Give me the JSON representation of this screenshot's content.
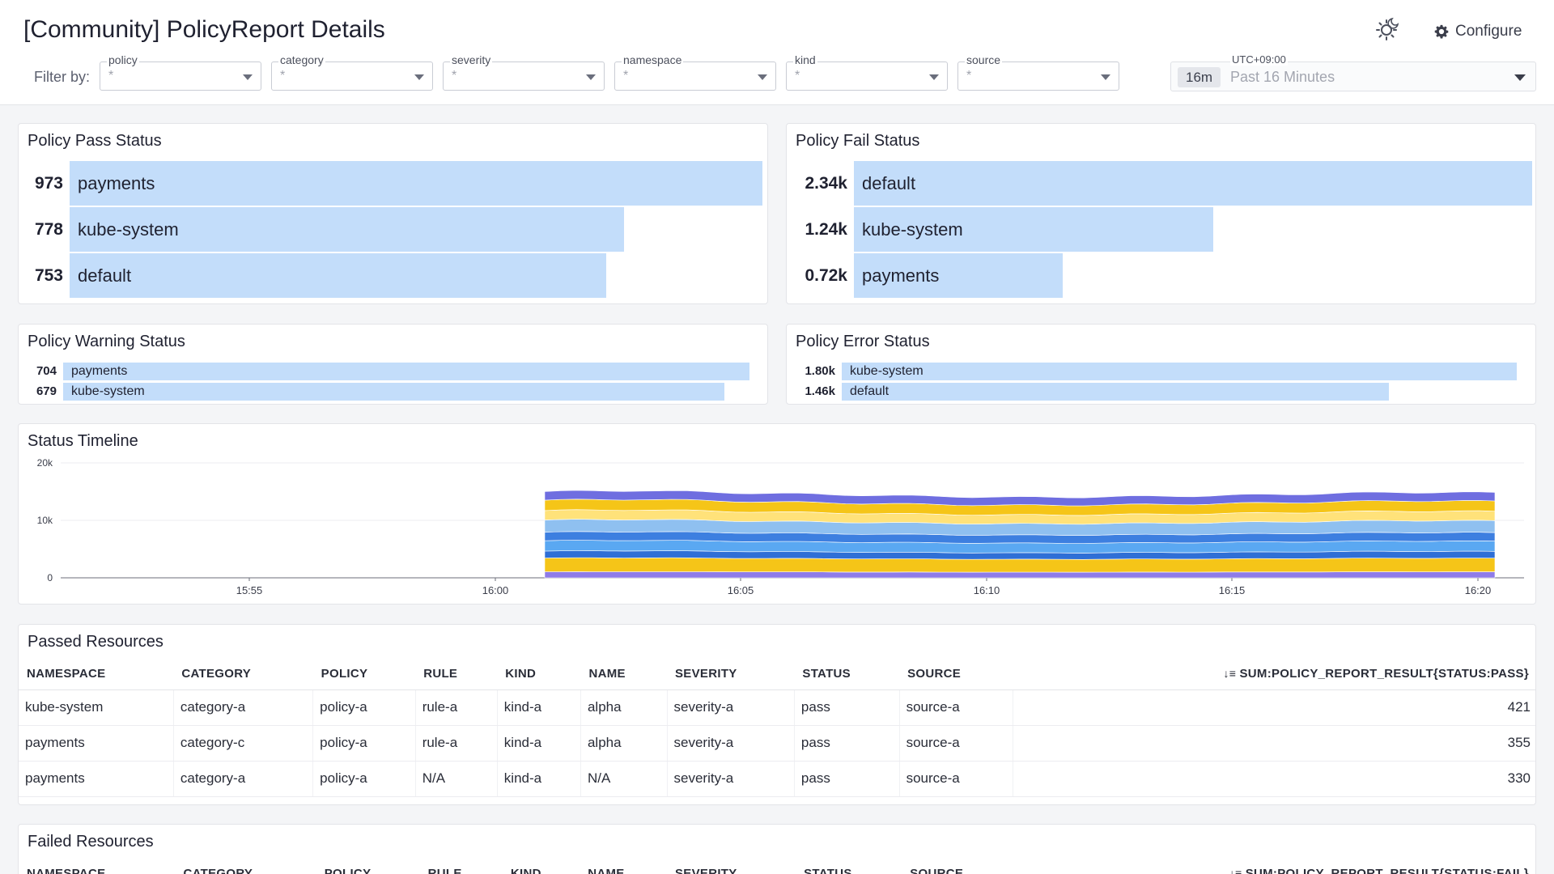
{
  "header": {
    "title": "[Community] PolicyReport Details",
    "configure_label": "Configure",
    "filter_by_label": "Filter by:",
    "filters": [
      {
        "name": "policy",
        "value": "*"
      },
      {
        "name": "category",
        "value": "*"
      },
      {
        "name": "severity",
        "value": "*"
      },
      {
        "name": "namespace",
        "value": "*"
      },
      {
        "name": "kind",
        "value": "*"
      },
      {
        "name": "source",
        "value": "*"
      }
    ],
    "time": {
      "timezone": "UTC+09:00",
      "badge": "16m",
      "range": "Past 16 Minutes"
    }
  },
  "pass_status": {
    "title": "Policy Pass Status",
    "rows": [
      {
        "value": "973",
        "label": "payments",
        "fraction": 1.0
      },
      {
        "value": "778",
        "label": "kube-system",
        "fraction": 0.8
      },
      {
        "value": "753",
        "label": "default",
        "fraction": 0.774
      }
    ]
  },
  "fail_status": {
    "title": "Policy Fail Status",
    "rows": [
      {
        "value": "2.34k",
        "label": "default",
        "fraction": 1.0
      },
      {
        "value": "1.24k",
        "label": "kube-system",
        "fraction": 0.53
      },
      {
        "value": "0.72k",
        "label": "payments",
        "fraction": 0.308
      }
    ]
  },
  "warning_status": {
    "title": "Policy Warning Status",
    "rows": [
      {
        "value": "704",
        "label": "payments",
        "fraction": 1.0
      },
      {
        "value": "679",
        "label": "kube-system",
        "fraction": 0.964
      }
    ]
  },
  "error_status": {
    "title": "Policy Error Status",
    "rows": [
      {
        "value": "1.80k",
        "label": "kube-system",
        "fraction": 1.0
      },
      {
        "value": "1.46k",
        "label": "default",
        "fraction": 0.811
      }
    ]
  },
  "timeline": {
    "title": "Status Timeline",
    "chart_data": {
      "type": "area",
      "title": "Status Timeline",
      "y_ticks": [
        "20k",
        "10k",
        "0"
      ],
      "ylim": [
        0,
        20000
      ],
      "x_ticks": [
        "15:55",
        "16:00",
        "16:05",
        "16:10",
        "16:15",
        "16:20"
      ],
      "series_colors": [
        "#6f6ee0",
        "#f5c518",
        "#ffe27a",
        "#8fc0f0",
        "#3d7fe0",
        "#5aa8f2",
        "#2f6fd6",
        "#f5c518",
        "#8e7ce8"
      ],
      "total_estimate": [
        15000,
        15200,
        14800,
        14500,
        14200,
        14000,
        14100,
        14300,
        14600,
        14900,
        14800
      ]
    }
  },
  "passed_resources": {
    "title": "Passed Resources",
    "columns": [
      "NAMESPACE",
      "CATEGORY",
      "POLICY",
      "RULE",
      "KIND",
      "NAME",
      "SEVERITY",
      "STATUS",
      "SOURCE",
      "SUM:POLICY_REPORT_RESULT{STATUS:PASS}"
    ],
    "rows": [
      [
        "kube-system",
        "category-a",
        "policy-a",
        "rule-a",
        "kind-a",
        "alpha",
        "severity-a",
        "pass",
        "source-a",
        "421"
      ],
      [
        "payments",
        "category-c",
        "policy-a",
        "rule-a",
        "kind-a",
        "alpha",
        "severity-a",
        "pass",
        "source-a",
        "355"
      ],
      [
        "payments",
        "category-a",
        "policy-a",
        "N/A",
        "kind-a",
        "N/A",
        "severity-a",
        "pass",
        "source-a",
        "330"
      ]
    ]
  },
  "failed_resources": {
    "title": "Failed Resources",
    "columns": [
      "NAMESPACE",
      "CATEGORY",
      "POLICY",
      "RULE",
      "KIND",
      "NAME",
      "SEVERITY",
      "STATUS",
      "SOURCE",
      "SUM:POLICY_REPORT_RESULT{STATUS:FAIL}"
    ]
  }
}
